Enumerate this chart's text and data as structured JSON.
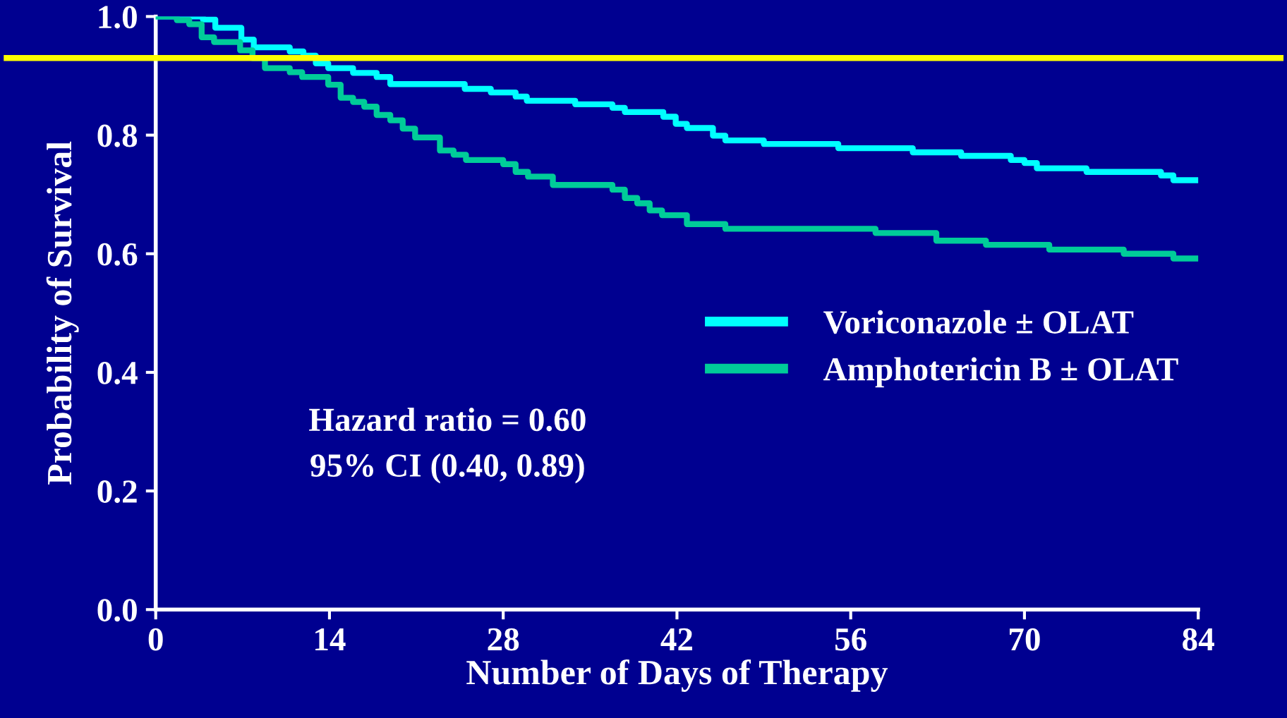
{
  "chart_data": {
    "type": "step",
    "xlabel": "Number of Days of Therapy",
    "ylabel": "Probability of Survival",
    "xlim": [
      0,
      84
    ],
    "xticks": [
      0,
      14,
      28,
      42,
      56,
      70,
      84
    ],
    "ylim": [
      0,
      1.0
    ],
    "yticks": [
      {
        "value": 0,
        "label": "0.0"
      },
      0.2,
      0.4,
      0.6,
      0.8,
      {
        "value": 1.0,
        "label": "1.0"
      }
    ],
    "grid": false,
    "legend": "right",
    "line_style": "solid",
    "marker": "none",
    "series": [
      {
        "name": "Voriconazole ± OLAT",
        "color": "#00ffff",
        "x": [
          0,
          3.8,
          4.8,
          6.9,
          7.9,
          10.8,
          11.9,
          12.9,
          13.9,
          15.9,
          17.8,
          18.9,
          24.9,
          27,
          29,
          29.9,
          33.8,
          36.8,
          37.8,
          40.9,
          41.9,
          42.8,
          44.9,
          45.9,
          49,
          55,
          61,
          64.9,
          68.9,
          70,
          71,
          75,
          81,
          82,
          84
        ],
        "values": [
          1.0,
          0.995,
          0.981,
          0.961,
          0.948,
          0.941,
          0.934,
          0.921,
          0.913,
          0.905,
          0.898,
          0.886,
          0.878,
          0.872,
          0.865,
          0.858,
          0.852,
          0.846,
          0.839,
          0.831,
          0.819,
          0.812,
          0.799,
          0.791,
          0.785,
          0.778,
          0.771,
          0.765,
          0.758,
          0.753,
          0.744,
          0.738,
          0.732,
          0.724,
          0.724
        ]
      },
      {
        "name": "Amphotericin B ± OLAT",
        "color": "#00cc99",
        "x": [
          0,
          1.7,
          2.7,
          3.7,
          4.7,
          6.8,
          7.8,
          8.8,
          10.8,
          11.8,
          13.9,
          14.9,
          15.9,
          16.8,
          17.8,
          18.9,
          19.9,
          20.9,
          22.9,
          24,
          25,
          28,
          29,
          30,
          32,
          36.8,
          37.8,
          38.8,
          39.8,
          40.8,
          42.8,
          45.9,
          58,
          62.9,
          66.9,
          72,
          78,
          82,
          84
        ],
        "values": [
          1.0,
          0.994,
          0.987,
          0.965,
          0.957,
          0.943,
          0.93,
          0.913,
          0.906,
          0.898,
          0.885,
          0.863,
          0.856,
          0.848,
          0.834,
          0.825,
          0.811,
          0.796,
          0.774,
          0.767,
          0.758,
          0.751,
          0.738,
          0.73,
          0.716,
          0.708,
          0.694,
          0.685,
          0.673,
          0.665,
          0.65,
          0.642,
          0.635,
          0.622,
          0.615,
          0.607,
          0.6,
          0.592,
          0.592
        ]
      }
    ],
    "ref_lines": [
      {
        "axis": "y",
        "value": 0.93,
        "color": "#ffff00",
        "line_style": "solid"
      }
    ],
    "annotations": [
      "Hazard ratio = 0.60",
      "95% CI (0.40, 0.89)"
    ]
  }
}
